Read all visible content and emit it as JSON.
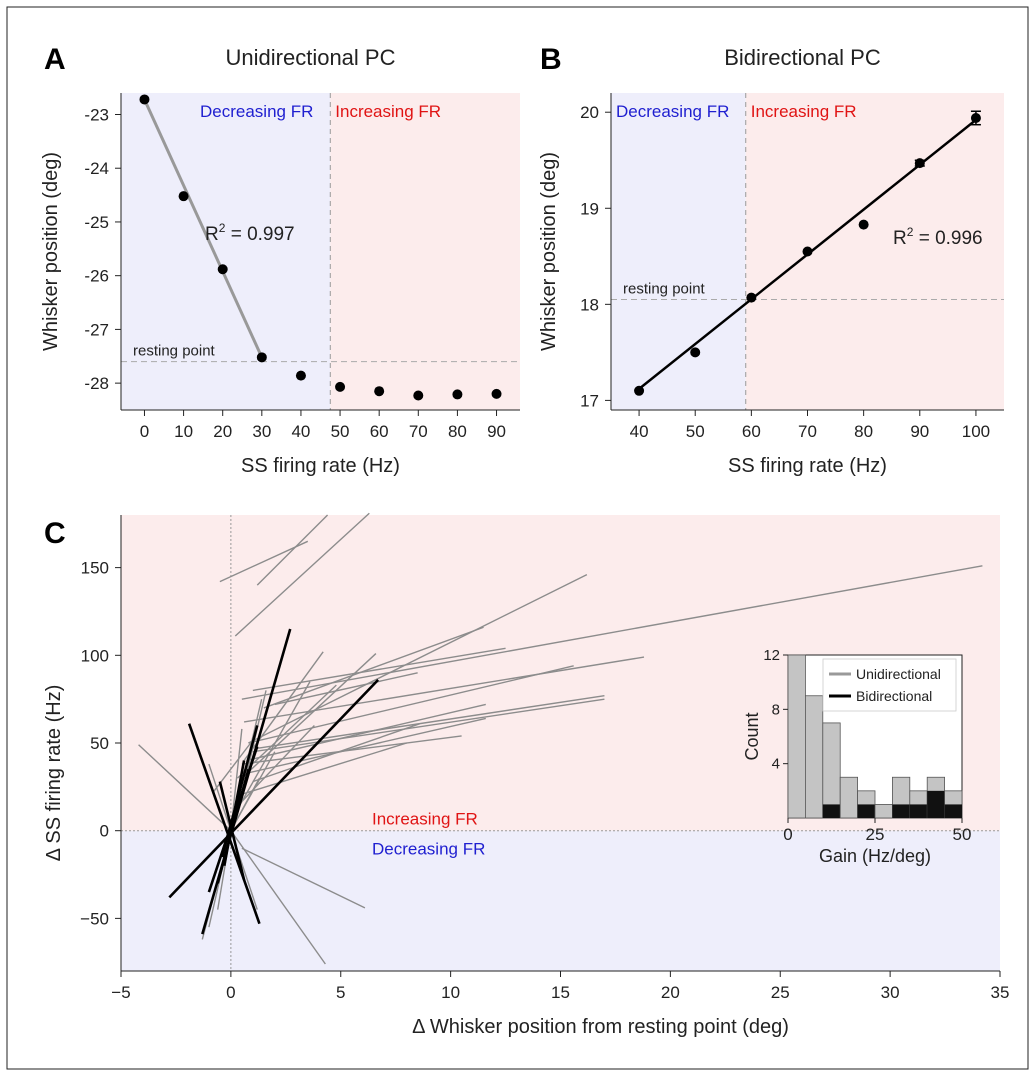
{
  "colors": {
    "decreasing_bg": "#eeeefb",
    "increasing_bg": "#fcecec",
    "decreasing_text": "#1f1fd0",
    "increasing_text": "#e01414",
    "unidirectional_line": "#8c8c8c",
    "bidirectional_line": "#000000",
    "hist_uni_fill": "#c4c4c4",
    "hist_bi_fill": "#111111"
  },
  "chart_data": [
    {
      "panel": "A",
      "type": "scatter",
      "title": "Unidirectional PC",
      "xlabel": "SS firing rate (Hz)",
      "ylabel": "Whisker position (deg)",
      "xlim": [
        -6,
        96
      ],
      "ylim": [
        -28.5,
        -22.6
      ],
      "xticks": [
        0,
        10,
        20,
        30,
        40,
        50,
        60,
        70,
        80,
        90
      ],
      "yticks": [
        -28,
        -27,
        -26,
        -25,
        -24,
        -23
      ],
      "x": [
        0,
        10,
        20,
        30,
        40,
        50,
        60,
        70,
        80,
        90
      ],
      "y": [
        -22.72,
        -24.52,
        -25.88,
        -27.52,
        -27.86,
        -28.07,
        -28.15,
        -28.23,
        -28.21,
        -28.2
      ],
      "fit": {
        "x": [
          0,
          30
        ],
        "y": [
          -22.72,
          -27.52
        ],
        "color": "#999999"
      },
      "resting_point": {
        "x": 47.5,
        "y": -27.6,
        "label": "resting point"
      },
      "regions": {
        "left": "Decreasing FR",
        "right": "Increasing FR"
      },
      "r2_label": "R",
      "r2_value": "= 0.997",
      "r2_exp": "2"
    },
    {
      "panel": "B",
      "type": "scatter",
      "title": "Bidirectional PC",
      "xlabel": "SS firing rate (Hz)",
      "ylabel": "Whisker position (deg)",
      "xlim": [
        35,
        105
      ],
      "ylim": [
        16.9,
        20.2
      ],
      "xticks": [
        40,
        50,
        60,
        70,
        80,
        90,
        100
      ],
      "yticks": [
        17,
        18,
        19,
        20
      ],
      "x": [
        40,
        50,
        60,
        70,
        80,
        90,
        100
      ],
      "y": [
        17.1,
        17.5,
        18.07,
        18.55,
        18.83,
        19.47,
        19.94
      ],
      "yerr": [
        0.0,
        0.0,
        0.0,
        0.0,
        0.0,
        0.03,
        0.07
      ],
      "fit": {
        "x": [
          40,
          100
        ],
        "y": [
          17.12,
          19.92
        ],
        "color": "#000000"
      },
      "resting_point": {
        "x": 59,
        "y": 18.05,
        "label": "resting point"
      },
      "regions": {
        "left": "Decreasing FR",
        "right": "Increasing FR"
      },
      "r2_label": "R",
      "r2_value": "= 0.996",
      "r2_exp": "2"
    },
    {
      "panel": "C",
      "type": "line",
      "xlabel": "Δ Whisker position from resting point (deg)",
      "ylabel": "Δ SS firing rate (Hz)",
      "xlim": [
        -5,
        35
      ],
      "ylim": [
        -80,
        180
      ],
      "xticks": [
        -5,
        0,
        5,
        10,
        15,
        20,
        25,
        30,
        35
      ],
      "yticks": [
        -50,
        0,
        50,
        100,
        150
      ],
      "regions": {
        "upper": "Increasing FR",
        "lower": "Decreasing FR"
      },
      "unidirectional_lines": [
        [
          [
            -0.5,
            142
          ],
          [
            3.5,
            165
          ]
        ],
        [
          [
            1.2,
            140
          ],
          [
            4.4,
            180
          ]
        ],
        [
          [
            0.2,
            111
          ],
          [
            6.3,
            181
          ]
        ],
        [
          [
            0.5,
            75
          ],
          [
            34.2,
            151
          ]
        ],
        [
          [
            0.8,
            50
          ],
          [
            16.2,
            146
          ]
        ],
        [
          [
            1.5,
            70
          ],
          [
            11.5,
            116
          ]
        ],
        [
          [
            1.0,
            80
          ],
          [
            12.5,
            104
          ]
        ],
        [
          [
            0.6,
            62
          ],
          [
            18.8,
            99
          ]
        ],
        [
          [
            0.8,
            50
          ],
          [
            15.6,
            94
          ]
        ],
        [
          [
            2.0,
            72
          ],
          [
            8.5,
            90
          ]
        ],
        [
          [
            1.2,
            47
          ],
          [
            17.0,
            77
          ]
        ],
        [
          [
            1.0,
            45
          ],
          [
            17.0,
            75
          ]
        ],
        [
          [
            0.7,
            40
          ],
          [
            11.6,
            72
          ]
        ],
        [
          [
            0.8,
            33
          ],
          [
            11.6,
            64
          ]
        ],
        [
          [
            1.0,
            28
          ],
          [
            8.6,
            61
          ]
        ],
        [
          [
            0.5,
            38
          ],
          [
            10.5,
            54
          ]
        ],
        [
          [
            0.3,
            20
          ],
          [
            8.0,
            50
          ]
        ],
        [
          [
            0.5,
            30
          ],
          [
            6.6,
            101
          ]
        ],
        [
          [
            0.6,
            40
          ],
          [
            4.2,
            102
          ]
        ],
        [
          [
            0.2,
            10
          ],
          [
            3.6,
            85
          ]
        ],
        [
          [
            0.4,
            15
          ],
          [
            1.6,
            80
          ]
        ],
        [
          [
            0.3,
            30
          ],
          [
            4.8,
            83
          ]
        ],
        [
          [
            0.3,
            14
          ],
          [
            3.8,
            60
          ]
        ],
        [
          [
            0.0,
            0
          ],
          [
            1.4,
            75
          ]
        ],
        [
          [
            0.0,
            0
          ],
          [
            2.0,
            45
          ]
        ],
        [
          [
            -0.8,
            22
          ],
          [
            0.9,
            50
          ]
        ],
        [
          [
            -4.2,
            49
          ],
          [
            0.0,
            0
          ]
        ],
        [
          [
            0.0,
            0
          ],
          [
            1.0,
            40
          ]
        ],
        [
          [
            0.0,
            0
          ],
          [
            0.5,
            58
          ]
        ],
        [
          [
            0.0,
            0
          ],
          [
            1.3,
            30
          ]
        ],
        [
          [
            0.0,
            0
          ],
          [
            -1.0,
            38
          ]
        ],
        [
          [
            0.0,
            0
          ],
          [
            -1.3,
            -62
          ]
        ],
        [
          [
            0.0,
            0
          ],
          [
            4.3,
            -76
          ]
        ],
        [
          [
            0.0,
            0
          ],
          [
            1.2,
            -45
          ]
        ],
        [
          [
            0.0,
            0
          ],
          [
            -0.6,
            -45
          ]
        ],
        [
          [
            0.0,
            0
          ],
          [
            -0.5,
            -25
          ]
        ],
        [
          [
            0.5,
            -10
          ],
          [
            6.1,
            -44
          ]
        ],
        [
          [
            0.0,
            0
          ],
          [
            -1.0,
            -55
          ]
        ]
      ],
      "bidirectional_lines": [
        [
          [
            -1.9,
            61
          ],
          [
            1.3,
            -53
          ]
        ],
        [
          [
            -2.8,
            -38
          ],
          [
            6.7,
            86
          ]
        ],
        [
          [
            -1.3,
            -59
          ],
          [
            2.7,
            115
          ]
        ],
        [
          [
            -1.0,
            -35
          ],
          [
            1.2,
            48
          ]
        ],
        [
          [
            -0.6,
            -30
          ],
          [
            0.8,
            35
          ]
        ],
        [
          [
            -0.3,
            -20
          ],
          [
            0.6,
            40
          ]
        ],
        [
          [
            -0.5,
            28
          ],
          [
            0.6,
            -28
          ]
        ],
        [
          [
            -0.4,
            -15
          ],
          [
            1.2,
            60
          ]
        ]
      ],
      "inset": {
        "type": "bar",
        "xlabel": "Gain (Hz/deg)",
        "ylabel": "Count",
        "xlim": [
          0,
          50
        ],
        "ylim": [
          0,
          12
        ],
        "xticks": [
          0,
          25,
          50
        ],
        "yticks": [
          4,
          8,
          12
        ],
        "bin_width": 5,
        "bin_starts": [
          0,
          5,
          10,
          15,
          20,
          25,
          30,
          35,
          40,
          45
        ],
        "unidirectional_total": [
          12,
          9,
          7,
          3,
          2,
          1,
          3,
          2,
          3,
          2
        ],
        "bidirectional": [
          0,
          0,
          1,
          0,
          1,
          0,
          1,
          1,
          2,
          1
        ],
        "series": [
          {
            "name": "Unidirectional",
            "color": "#999999"
          },
          {
            "name": "Bidirectional",
            "color": "#000000"
          }
        ]
      }
    }
  ]
}
